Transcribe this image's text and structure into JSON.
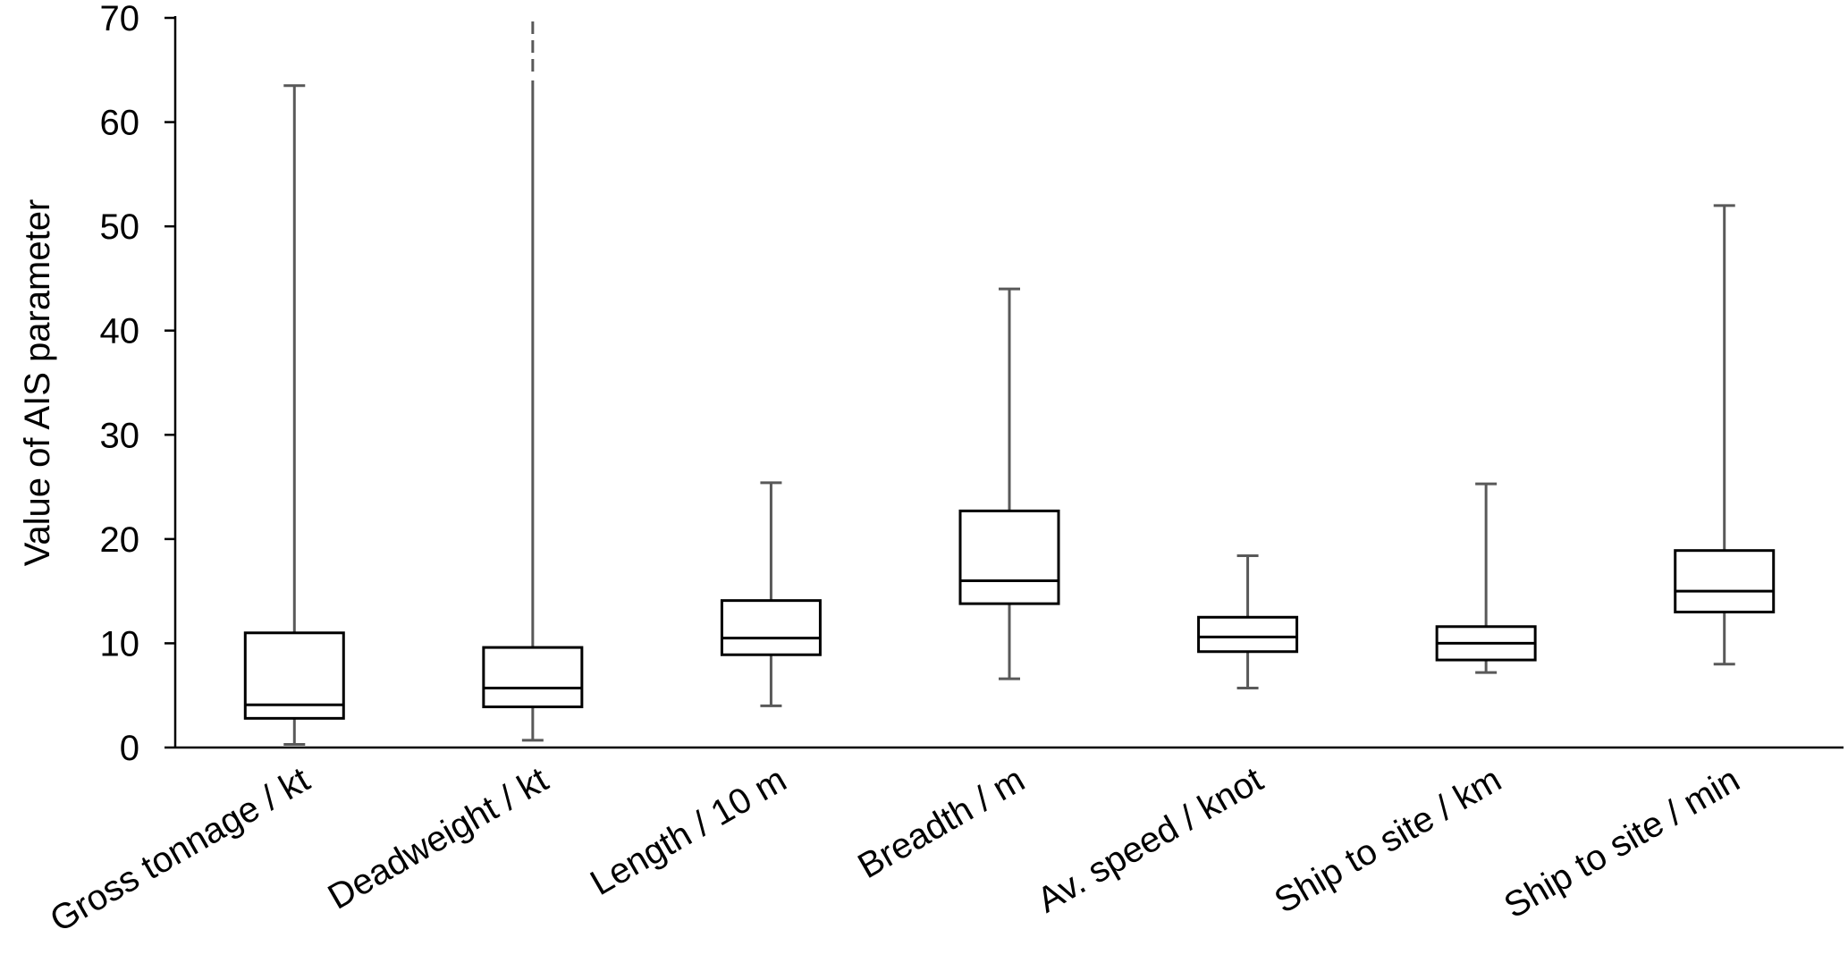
{
  "chart_data": {
    "type": "box",
    "ylabel": "Value of AIS parameter",
    "ylim": [
      0,
      70
    ],
    "yticks": [
      0,
      10,
      20,
      30,
      40,
      50,
      60,
      70
    ],
    "ytick_labels": [
      "0",
      "10",
      "20",
      "30",
      "40",
      "50",
      "60",
      "70"
    ],
    "grid": false,
    "colors": {
      "box_stroke": "#000000",
      "whisker": "#595959",
      "axis": "#000000"
    },
    "categories": [
      "Gross tonnage / kt",
      "Deadweight / kt",
      "Length / 10 m",
      "Breadth / m",
      "Av. speed / knot",
      "Ship to site / km",
      "Ship to site / min"
    ],
    "boxes": [
      {
        "min": 0.3,
        "q1": 2.8,
        "median": 4.1,
        "q3": 11.0,
        "max": 63.5,
        "max_exceeds_axis": false
      },
      {
        "min": 0.7,
        "q1": 3.9,
        "median": 5.7,
        "q3": 9.6,
        "max": 70,
        "max_exceeds_axis": true
      },
      {
        "min": 4.0,
        "q1": 8.9,
        "median": 10.5,
        "q3": 14.1,
        "max": 25.4,
        "max_exceeds_axis": false
      },
      {
        "min": 6.6,
        "q1": 13.8,
        "median": 16.0,
        "q3": 22.7,
        "max": 44.0,
        "max_exceeds_axis": false
      },
      {
        "min": 5.7,
        "q1": 9.2,
        "median": 10.6,
        "q3": 12.5,
        "max": 18.4,
        "max_exceeds_axis": false
      },
      {
        "min": 7.2,
        "q1": 8.4,
        "median": 10.0,
        "q3": 11.6,
        "max": 25.3,
        "max_exceeds_axis": false
      },
      {
        "min": 8.0,
        "q1": 13.0,
        "median": 15.0,
        "q3": 18.9,
        "max": 52.0,
        "max_exceeds_axis": false
      }
    ]
  }
}
